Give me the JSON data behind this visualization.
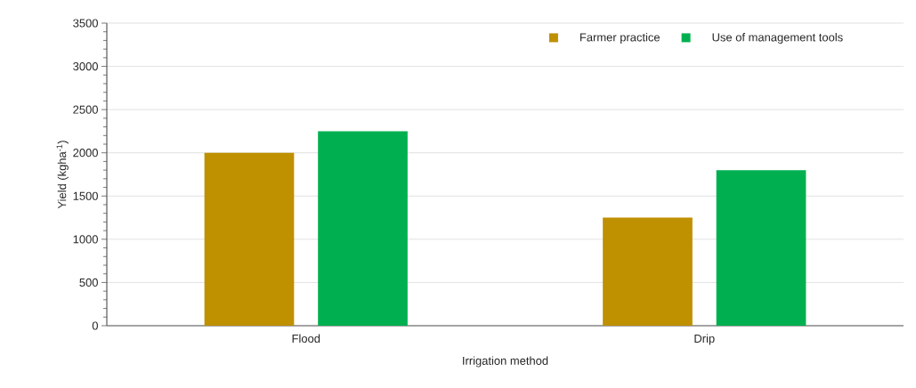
{
  "chart_data": {
    "type": "bar",
    "xlabel": "Irrigation method",
    "ylabel": "Yield (kgha$^{-1}$)",
    "categories": [
      "Flood",
      "Drip"
    ],
    "series": [
      {
        "name": "Farmer practice",
        "color": "#bf9000",
        "values": [
          2000,
          1250
        ]
      },
      {
        "name": "Use of management tools",
        "color": "#00b050",
        "values": [
          2250,
          1800
        ]
      }
    ],
    "ylim": [
      0,
      3500
    ],
    "yticks": [
      0,
      500,
      1000,
      1500,
      2000,
      2500,
      3000,
      3500
    ],
    "grid": "y",
    "legend": "top right"
  }
}
